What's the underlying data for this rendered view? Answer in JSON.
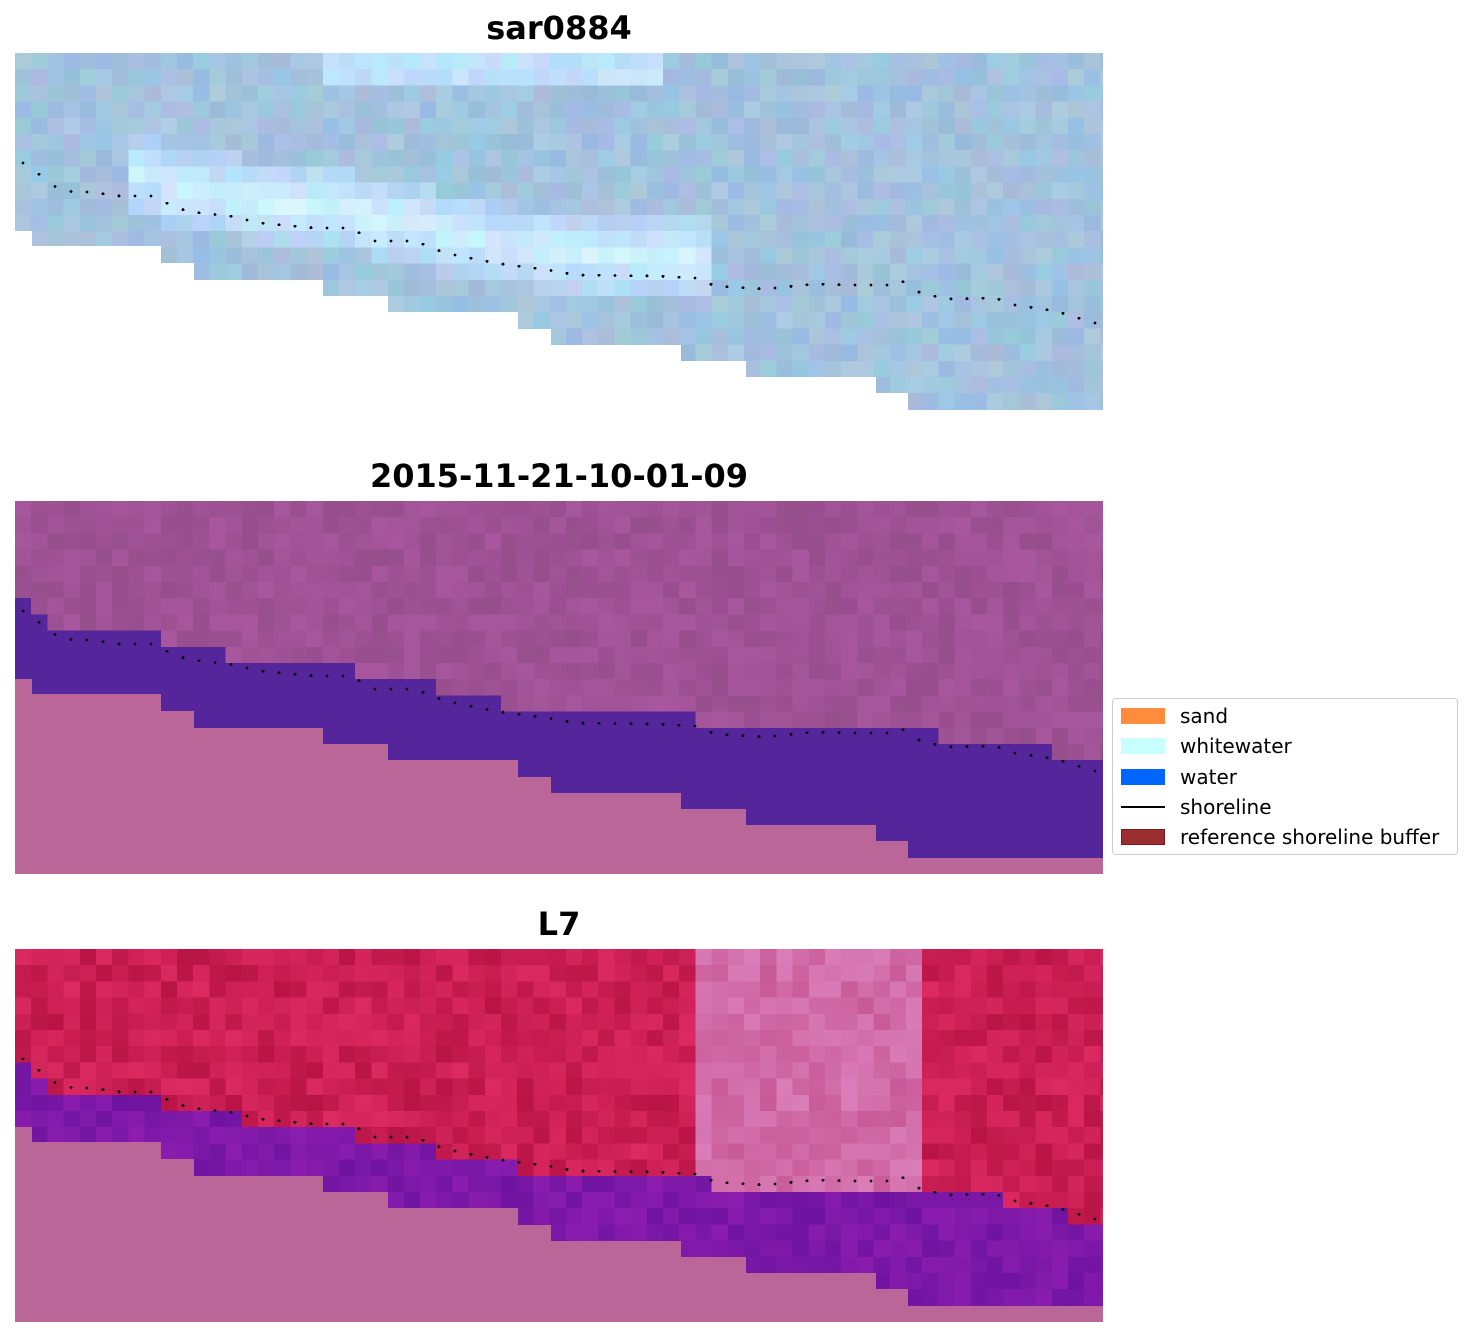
{
  "panels": [
    {
      "title": "sar0884",
      "style": "rgb"
    },
    {
      "title": "2015-11-21-10-01-09",
      "style": "classified"
    },
    {
      "title": "L7",
      "style": "mndwi"
    }
  ],
  "legend": {
    "items": [
      {
        "label": "sand",
        "kind": "patch",
        "color": "#ff8c3c"
      },
      {
        "label": "whitewater",
        "kind": "patch",
        "color": "#c8ffff"
      },
      {
        "label": "water",
        "kind": "patch",
        "color": "#0064ff"
      },
      {
        "label": "shoreline",
        "kind": "line",
        "color": "#000000"
      },
      {
        "label": "reference shoreline buffer",
        "kind": "patch",
        "color": "#9b2f2f"
      }
    ]
  },
  "colors": {
    "no_data": "#bb6699",
    "water_classified": "#55259c",
    "land_classified": "#9a5a8e",
    "shoreline_points": "#000000"
  }
}
